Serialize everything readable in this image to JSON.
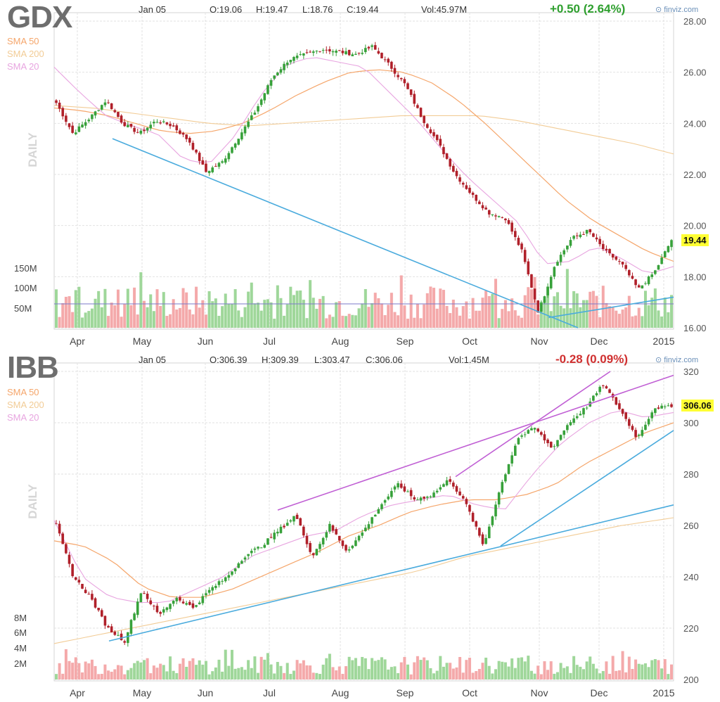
{
  "colors": {
    "up": "#37a13a",
    "down": "#b0202a",
    "vol_up": "#9fd79a",
    "vol_down": "#f4a9aa",
    "sma50": "#f5a66b",
    "sma200": "#f2cc96",
    "sma20": "#e8a5e0",
    "trend_blue": "#4aabdd",
    "trend_purple": "#c05fd4",
    "avg_line": "#7b79c9",
    "grid": "#e2e2e2"
  },
  "watermark": "DAILY",
  "months": [
    "Apr",
    "May",
    "Jun",
    "Jul",
    "Aug",
    "Sep",
    "Oct",
    "Nov",
    "Dec",
    "2015"
  ],
  "sma_labels": {
    "sma50": "SMA 50",
    "sma200": "SMA 200",
    "sma20": "SMA 20"
  },
  "panels": [
    {
      "id": "gdx",
      "ticker": "GDX",
      "date": "Jan 05",
      "open": "O:19.06",
      "high": "H:19.47",
      "low": "L:18.76",
      "close": "C:19.44",
      "volume": "Vol:45.97M",
      "change": "+0.50 (2.64%)",
      "change_dir": "up",
      "brand": "finviz.com",
      "last_price": "19.44",
      "price_axis": [
        "28.00",
        "26.00",
        "24.00",
        "22.00",
        "20.00",
        "18.00",
        "16.00"
      ],
      "volume_axis": [
        "150M",
        "100M",
        "50M"
      ]
    },
    {
      "id": "ibb",
      "ticker": "IBB",
      "date": "Jan 05",
      "open": "O:306.39",
      "high": "H:309.39",
      "low": "L:303.47",
      "close": "C:306.06",
      "volume": "Vol:1.45M",
      "change": "-0.28 (0.09%)",
      "change_dir": "down",
      "brand": "finviz.com",
      "last_price": "306.06",
      "price_axis": [
        "320",
        "300",
        "280",
        "260",
        "240",
        "220",
        "200"
      ],
      "volume_axis": [
        "8M",
        "6M",
        "4M",
        "2M"
      ]
    }
  ],
  "chart_data": [
    {
      "type": "candlestick",
      "title": "GDX",
      "ylim": [
        16,
        28
      ],
      "x": [
        "Apr",
        "May",
        "Jun",
        "Jul",
        "Aug",
        "Sep",
        "Oct",
        "Nov",
        "Dec",
        "2015"
      ],
      "close_path": [
        24.8,
        23.6,
        24.2,
        24.9,
        24.0,
        23.6,
        24.1,
        23.9,
        23.3,
        22.1,
        22.5,
        23.5,
        24.5,
        25.8,
        26.5,
        26.7,
        26.9,
        26.8,
        26.7,
        27.0,
        26.3,
        25.5,
        24.2,
        23.2,
        22.0,
        21.2,
        20.5,
        20.3,
        19.0,
        16.6,
        18.5,
        19.5,
        19.8,
        19.0,
        18.5,
        17.5,
        18.2,
        19.44
      ],
      "sma50": [
        24.6,
        24.5,
        24.3,
        24.0,
        23.7,
        23.6,
        23.7,
        24.0,
        24.5,
        25.1,
        25.6,
        26.0,
        26.1,
        26.0,
        25.6,
        24.9,
        24.0,
        23.0,
        22.0,
        21.0,
        20.2,
        19.6,
        19.0,
        18.6
      ],
      "sma200": [
        24.7,
        24.6,
        24.4,
        24.2,
        24.0,
        23.9,
        24.0,
        24.1,
        24.2,
        24.3,
        24.3,
        24.3,
        24.1,
        23.8,
        23.5,
        23.2,
        22.8
      ],
      "sma20": [
        26.2,
        25.2,
        24.3,
        23.9,
        23.6,
        22.6,
        22.4,
        23.5,
        25.1,
        26.3,
        26.6,
        26.4,
        26.2,
        25.2,
        24.2,
        23.0,
        21.9,
        21.0,
        20.1,
        18.5,
        18.6,
        19.2,
        18.7,
        18.1,
        18.4
      ],
      "trendlines": [
        [
          23.4,
          16.0
        ],
        [
          17.0,
          17.2
        ]
      ],
      "volume_avg": "~60M"
    },
    {
      "type": "candlestick",
      "title": "IBB",
      "ylim": [
        200,
        320
      ],
      "x": [
        "Apr",
        "May",
        "Jun",
        "Jul",
        "Aug",
        "Sep",
        "Oct",
        "Nov",
        "Dec",
        "2015"
      ],
      "close_path": [
        260,
        240,
        232,
        220,
        215,
        235,
        225,
        232,
        228,
        235,
        240,
        248,
        252,
        258,
        264,
        248,
        260,
        250,
        258,
        268,
        276,
        270,
        272,
        278,
        268,
        252,
        275,
        294,
        298,
        290,
        300,
        306,
        315,
        305,
        294,
        306,
        306.06
      ],
      "sma50": [
        254,
        252,
        246,
        236,
        232,
        232,
        235,
        240,
        245,
        250,
        256,
        260,
        265,
        268,
        270,
        270,
        272,
        276,
        284,
        290,
        296,
        300
      ],
      "sma200": [
        214,
        218,
        222,
        226,
        230,
        234,
        238,
        242,
        248,
        252,
        256,
        260,
        263
      ],
      "sma20": [
        262,
        240,
        232,
        230,
        230,
        235,
        240,
        248,
        252,
        256,
        258,
        264,
        268,
        270,
        272,
        268,
        266,
        280,
        292,
        300,
        305,
        302,
        304
      ],
      "trendlines": [
        [
          215,
          268
        ],
        [
          266,
          300
        ],
        [
          252,
          318
        ],
        [
          252,
          297
        ]
      ]
    }
  ]
}
